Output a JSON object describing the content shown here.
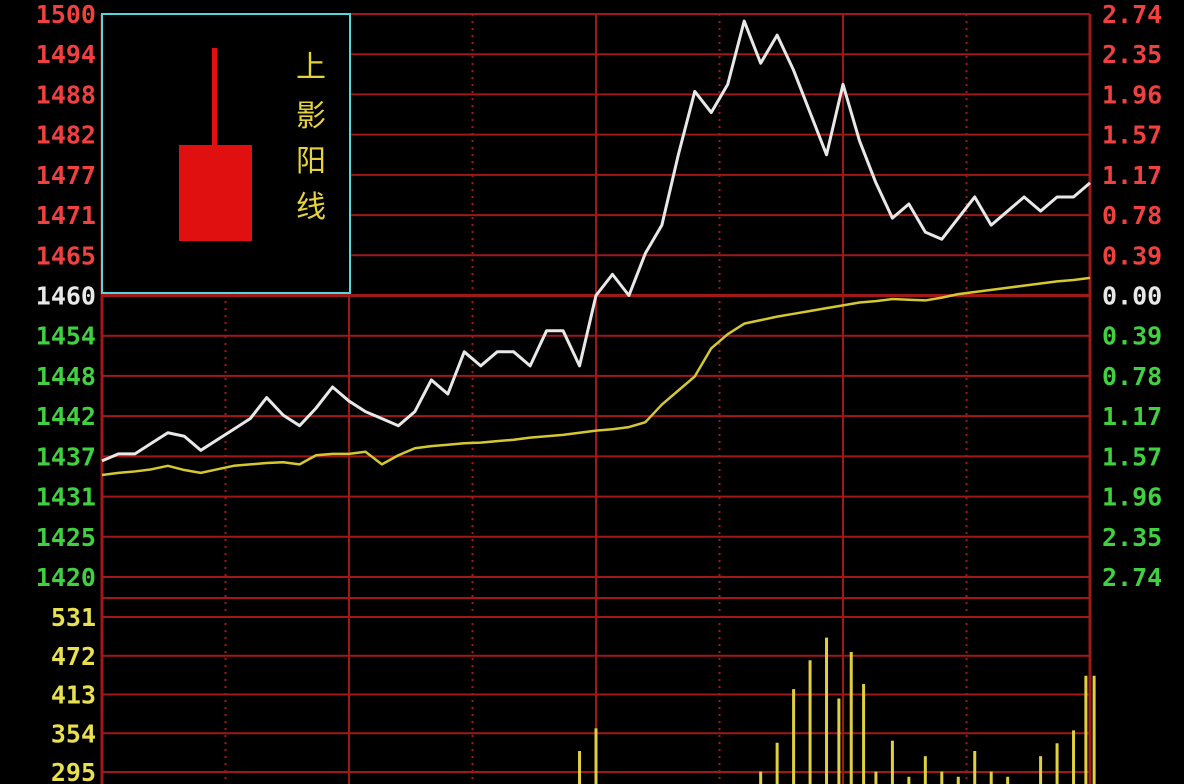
{
  "chart_data": {
    "type": "line",
    "title": "",
    "price_axis": {
      "range": [
        1420,
        1500
      ],
      "ticks_left": [
        "1500",
        "1494",
        "1488",
        "1482",
        "1477",
        "1471",
        "1465",
        "1460",
        "1454",
        "1448",
        "1442",
        "1437",
        "1431",
        "1425",
        "1420"
      ],
      "ticks_right": [
        "2.74",
        "2.35",
        "1.96",
        "1.57",
        "1.17",
        "0.78",
        "0.39",
        "0.00",
        "0.39",
        "0.78",
        "1.17",
        "1.57",
        "1.96",
        "2.35",
        "2.74"
      ],
      "reference": 1460
    },
    "volume_axis": {
      "range": [
        236,
        560
      ],
      "ticks": [
        "531",
        "472",
        "413",
        "354",
        "295"
      ]
    },
    "grid": true,
    "x": [
      0,
      4,
      8,
      12,
      16,
      20,
      24,
      28,
      32,
      36,
      40,
      44,
      48,
      52,
      56,
      60,
      64,
      68,
      72,
      76,
      80,
      84,
      88,
      92,
      96,
      100,
      104,
      108,
      112,
      116,
      120,
      124,
      128,
      132,
      136,
      140,
      144,
      148,
      152,
      156,
      160,
      164,
      168,
      172,
      176,
      180,
      184,
      188,
      192,
      196,
      200,
      204,
      208,
      212,
      216,
      220,
      224,
      228,
      232,
      236,
      240
    ],
    "series": [
      {
        "values": [
          1436.5,
          1437.5,
          1437.5,
          1439.0,
          1440.5,
          1440.0,
          1438.0,
          1439.5,
          1441.0,
          1442.5,
          1445.5,
          1443.0,
          1441.5,
          1444.0,
          1447.0,
          1445.0,
          1443.5,
          1442.5,
          1441.5,
          1443.5,
          1448.0,
          1446.0,
          1452.0,
          1450.0,
          1452.0,
          1452.0,
          1450.0,
          1455.0,
          1455.0,
          1450.0,
          1460.0,
          1463.0,
          1460.0,
          1466.0,
          1470.0,
          1480.0,
          1489.0,
          1486.0,
          1490.0,
          1499.0,
          1493.0,
          1497.0,
          1492.0,
          1486.0,
          1480.0,
          1490.0,
          1482.0,
          1476.0,
          1471.0,
          1473.0,
          1469.0,
          1468.0,
          1471.0,
          1474.0,
          1470.0,
          1472.0,
          1474.0,
          1472.0,
          1474.0,
          1474.0,
          1476.0
        ],
        "color": "#e8e8e8"
      },
      {
        "values": [
          1434.5,
          1434.8,
          1435.0,
          1435.3,
          1435.8,
          1435.2,
          1434.8,
          1435.3,
          1435.8,
          1436.0,
          1436.2,
          1436.3,
          1436.0,
          1437.3,
          1437.5,
          1437.5,
          1437.8,
          1436.0,
          1437.3,
          1438.3,
          1438.6,
          1438.8,
          1439.0,
          1439.1,
          1439.3,
          1439.5,
          1439.8,
          1440.0,
          1440.2,
          1440.5,
          1440.8,
          1441.0,
          1441.3,
          1442.0,
          1444.5,
          1446.5,
          1448.5,
          1452.5,
          1454.5,
          1456.0,
          1456.5,
          1457.0,
          1457.4,
          1457.8,
          1458.2,
          1458.6,
          1459.0,
          1459.2,
          1459.5,
          1459.4,
          1459.3,
          1459.7,
          1460.2,
          1460.5,
          1460.8,
          1461.1,
          1461.4,
          1461.7,
          1462.0,
          1462.2,
          1462.5
        ],
        "color": "#d4c832"
      }
    ],
    "volume": {
      "color": "#e0d040",
      "bars": [
        {
          "x": 116,
          "v": 300
        },
        {
          "x": 120,
          "v": 344
        },
        {
          "x": 160,
          "v": 260
        },
        {
          "x": 164,
          "v": 316
        },
        {
          "x": 168,
          "v": 420
        },
        {
          "x": 172,
          "v": 476
        },
        {
          "x": 176,
          "v": 520
        },
        {
          "x": 179,
          "v": 402
        },
        {
          "x": 182,
          "v": 492
        },
        {
          "x": 185,
          "v": 430
        },
        {
          "x": 188,
          "v": 260
        },
        {
          "x": 192,
          "v": 320
        },
        {
          "x": 196,
          "v": 250
        },
        {
          "x": 200,
          "v": 290
        },
        {
          "x": 204,
          "v": 260
        },
        {
          "x": 208,
          "v": 250
        },
        {
          "x": 212,
          "v": 300
        },
        {
          "x": 216,
          "v": 260
        },
        {
          "x": 220,
          "v": 250
        },
        {
          "x": 228,
          "v": 290
        },
        {
          "x": 232,
          "v": 315
        },
        {
          "x": 236,
          "v": 340
        },
        {
          "x": 239,
          "v": 446
        },
        {
          "x": 241,
          "v": 446
        }
      ]
    }
  },
  "legend_box": {
    "label_chars": [
      "上",
      "影",
      "阳",
      "线"
    ],
    "border_color": "#4fd8e0",
    "candle_color": "#e01010"
  },
  "colors": {
    "up": "#f04040",
    "down": "#40d040",
    "neutral": "#e8e8e8",
    "grid": "#a01818",
    "volume_tick": "#e8e050"
  }
}
